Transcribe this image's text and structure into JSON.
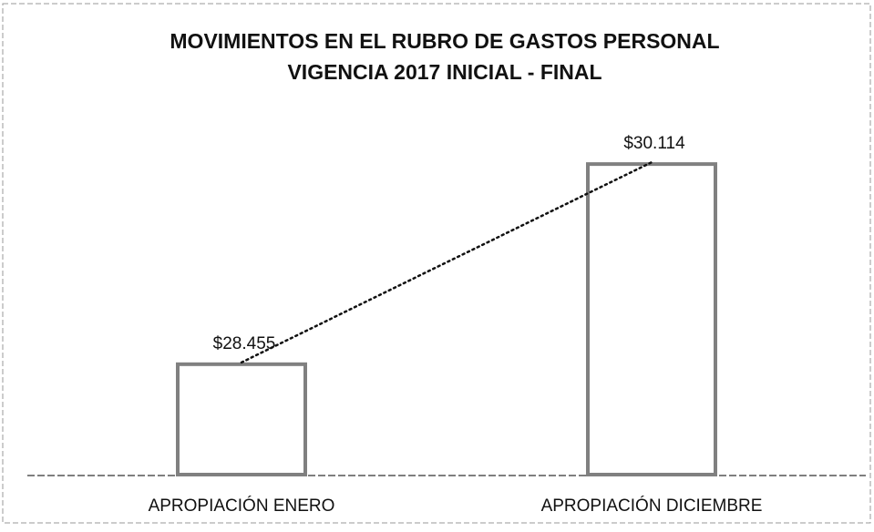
{
  "chart_data": {
    "type": "bar",
    "title": "MOVIMIENTOS EN EL RUBRO DE GASTOS PERSONAL",
    "subtitle": "VIGENCIA 2017 INICIAL - FINAL",
    "categories": [
      "APROPIACIÓN  ENERO",
      "APROPIACIÓN DICIEMBRE"
    ],
    "values": [
      28455,
      30114
    ],
    "value_labels": [
      "$28.455",
      "$30.114"
    ],
    "color": "#808080",
    "ylim": [
      27540,
      30500
    ]
  }
}
